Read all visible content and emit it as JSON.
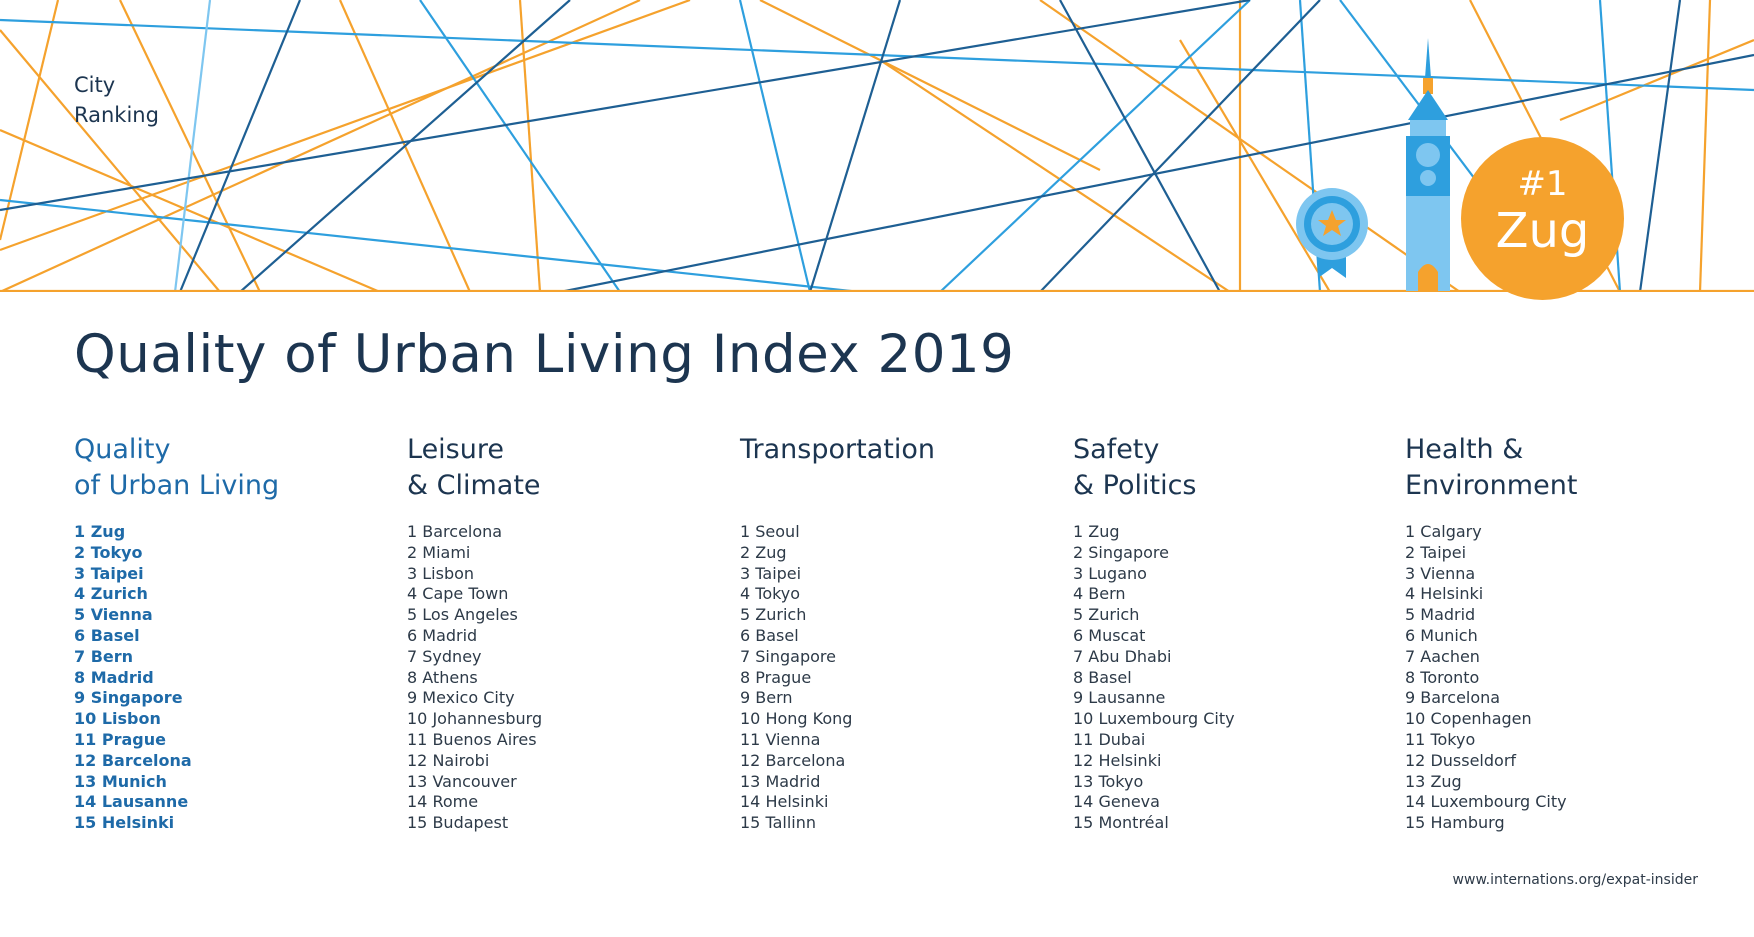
{
  "header": {
    "label_line1": "City",
    "label_line2": "Ranking",
    "badge_rank": "#1",
    "badge_city": "Zug"
  },
  "title": "Quality of Urban Living Index 2019",
  "columns": [
    {
      "heading_line1": "Quality",
      "heading_line2": "of Urban Living",
      "items": [
        "1 Zug",
        "2 Tokyo",
        "3 Taipei",
        "4 Zurich",
        "5 Vienna",
        "6 Basel",
        "7 Bern",
        "8 Madrid",
        "9 Singapore",
        "10 Lisbon",
        "11 Prague",
        "12 Barcelona",
        "13 Munich",
        "14 Lausanne",
        "15 Helsinki"
      ]
    },
    {
      "heading_line1": "Leisure",
      "heading_line2": "& Climate",
      "items": [
        "1 Barcelona",
        "2 Miami",
        "3 Lisbon",
        "4 Cape Town",
        "5 Los Angeles",
        "6 Madrid",
        "7 Sydney",
        "8 Athens",
        "9 Mexico City",
        "10 Johannesburg",
        "11 Buenos Aires",
        "12 Nairobi",
        "13 Vancouver",
        "14 Rome",
        "15 Budapest"
      ]
    },
    {
      "heading_line1": "Transportation",
      "heading_line2": "",
      "items": [
        "1 Seoul",
        "2 Zug",
        "3 Taipei",
        "4 Tokyo",
        "5 Zurich",
        "6 Basel",
        "7 Singapore",
        "8 Prague",
        "9 Bern",
        "10 Hong Kong",
        "11 Vienna",
        "12 Barcelona",
        "13 Madrid",
        "14 Helsinki",
        "15 Tallinn"
      ]
    },
    {
      "heading_line1": "Safety",
      "heading_line2": "& Politics",
      "items": [
        "1 Zug",
        "2 Singapore",
        "3 Lugano",
        "4 Bern",
        "5 Zurich",
        "6 Muscat",
        "7 Abu Dhabi",
        "8 Basel",
        "9 Lausanne",
        "10 Luxembourg City",
        "11 Dubai",
        "12 Helsinki",
        "13 Tokyo",
        "14 Geneva",
        "15 Montréal"
      ]
    },
    {
      "heading_line1": "Health &",
      "heading_line2": "Environment",
      "items": [
        "1 Calgary",
        "2 Taipei",
        "3 Vienna",
        "4 Helsinki",
        "5 Madrid",
        "6 Munich",
        "7 Aachen",
        "8 Toronto",
        "9 Barcelona",
        "10 Copenhagen",
        "11 Tokyo",
        "12 Dusseldorf",
        "13 Zug",
        "14 Luxembourg City",
        "15 Hamburg"
      ]
    }
  ],
  "footer": {
    "url": "www.internations.org/expat-insider"
  },
  "colors": {
    "dark_blue": "#1e5f93",
    "light_blue": "#2e9fde",
    "pale_blue": "#7ec6f0",
    "orange": "#f5a22d",
    "title_text": "#1c3550",
    "accent_text": "#1e6aa8"
  },
  "icons": [
    "award-ribbon-icon",
    "clock-tower-icon"
  ]
}
